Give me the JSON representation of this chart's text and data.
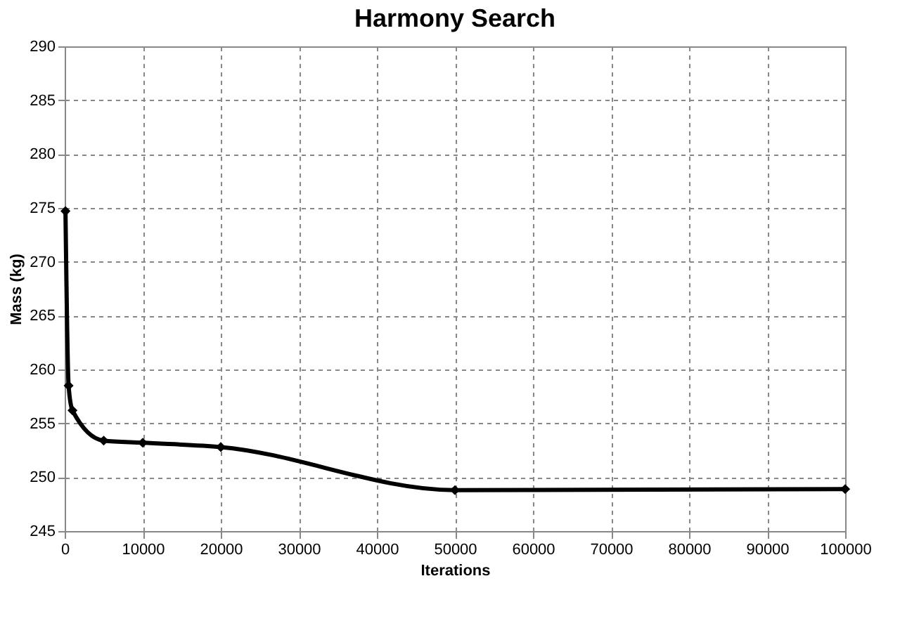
{
  "chart_data": {
    "type": "line",
    "title": "Harmony Search",
    "xlabel": "Iterations",
    "ylabel": "Mass (kg)",
    "x": [
      100,
      500,
      1000,
      5000,
      10000,
      20000,
      50000,
      100000
    ],
    "series": [
      {
        "color": "#000000",
        "values": [
          274.7,
          258.5,
          256.2,
          253.4,
          253.2,
          252.8,
          248.8,
          248.9
        ]
      }
    ],
    "xlim": [
      0,
      100000
    ],
    "xticks": [
      0,
      10000,
      20000,
      30000,
      40000,
      50000,
      60000,
      70000,
      80000,
      90000,
      100000
    ],
    "ylim": [
      245,
      290
    ],
    "yticks": [
      245,
      250,
      255,
      260,
      265,
      270,
      275,
      280,
      285,
      290
    ],
    "grid": true,
    "marker": "diamond",
    "line_style": "solid"
  }
}
